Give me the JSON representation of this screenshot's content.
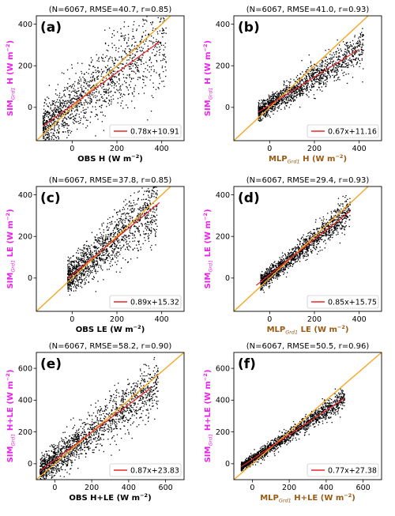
{
  "colors": {
    "points": "#000000",
    "one_to_one": "#f5a623",
    "fit": "#e8262a",
    "sim_label": "#ee22ee",
    "mlp_label": "#9a5a12",
    "obs_label": "#000000"
  },
  "chart_data": [
    {
      "type": "scatter",
      "panel_label": "(a)",
      "title": "(N=6067, RMSE=40.7, r=0.85)",
      "xlabel": {
        "main": "OBS",
        "sub": "",
        "rest": " H (W m",
        "sup": "−2",
        "close": ")",
        "kind": "obs"
      },
      "ylabel": {
        "main": "SIM",
        "sub": "Grd1",
        "rest": " H (W m",
        "sup": "−2",
        "close": ")"
      },
      "xlim": [
        -160,
        500
      ],
      "ylim": [
        -160,
        440
      ],
      "xticks": [
        0,
        200,
        400
      ],
      "yticks": [
        0,
        200,
        400
      ],
      "fit": {
        "slope": 0.78,
        "intercept": 10.91,
        "label": "0.78x+10.91",
        "x_range": [
          -130,
          390
        ]
      },
      "scatter": {
        "x_range": [
          -130,
          420
        ],
        "r": 0.85,
        "n_drawn": 1400
      }
    },
    {
      "type": "scatter",
      "panel_label": "(b)",
      "title": "(N=6067, RMSE=41.0, r=0.93)",
      "xlabel": {
        "main": "MLP",
        "sub": "Grd1",
        "rest": " H (W m",
        "sup": "−2",
        "close": ")",
        "kind": "mlp"
      },
      "ylabel": {
        "main": "SIM",
        "sub": "Grd1",
        "rest": " H (W m",
        "sup": "−2",
        "close": ")"
      },
      "xlim": [
        -160,
        500
      ],
      "ylim": [
        -160,
        440
      ],
      "xticks": [
        0,
        200,
        400
      ],
      "yticks": [
        0,
        200,
        400
      ],
      "fit": {
        "slope": 0.67,
        "intercept": 11.16,
        "label": "0.67x+11.16",
        "x_range": [
          -50,
          400
        ]
      },
      "scatter": {
        "x_range": [
          -50,
          420
        ],
        "r": 0.93,
        "n_drawn": 1400
      }
    },
    {
      "type": "scatter",
      "panel_label": "(c)",
      "title": "(N=6067, RMSE=37.8, r=0.85)",
      "xlabel": {
        "main": "OBS",
        "sub": "",
        "rest": " LE (W m",
        "sup": "−2",
        "close": ")",
        "kind": "obs"
      },
      "ylabel": {
        "main": "SIM",
        "sub": "Grd1",
        "rest": " LE (W m",
        "sup": "−2",
        "close": ")"
      },
      "xlim": [
        -160,
        500
      ],
      "ylim": [
        -160,
        440
      ],
      "xticks": [
        0,
        200,
        400
      ],
      "yticks": [
        0,
        200,
        400
      ],
      "fit": {
        "slope": 0.89,
        "intercept": 15.32,
        "label": "0.89x+15.32",
        "x_range": [
          -20,
          390
        ]
      },
      "scatter": {
        "x_range": [
          -20,
          380
        ],
        "r": 0.85,
        "n_drawn": 1400
      }
    },
    {
      "type": "scatter",
      "panel_label": "(d)",
      "title": "(N=6067, RMSE=29.4, r=0.93)",
      "xlabel": {
        "main": "MLP",
        "sub": "Grd1",
        "rest": " LE (W m",
        "sup": "−2",
        "close": ")",
        "kind": "mlp"
      },
      "ylabel": {
        "main": "SIM",
        "sub": "Grd1",
        "rest": " LE (W m",
        "sup": "−2",
        "close": ")"
      },
      "xlim": [
        -160,
        500
      ],
      "ylim": [
        -160,
        440
      ],
      "xticks": [
        0,
        200,
        400
      ],
      "yticks": [
        0,
        200,
        400
      ],
      "fit": {
        "slope": 0.85,
        "intercept": 15.75,
        "label": "0.85x+15.75",
        "x_range": [
          -60,
          360
        ]
      },
      "scatter": {
        "x_range": [
          -40,
          360
        ],
        "r": 0.93,
        "n_drawn": 1400
      }
    },
    {
      "type": "scatter",
      "panel_label": "(e)",
      "title": "(N=6067, RMSE=58.2, r=0.90)",
      "xlabel": {
        "main": "OBS",
        "sub": "",
        "rest": " H+LE (W m",
        "sup": "−2",
        "close": ")",
        "kind": "obs"
      },
      "ylabel": {
        "main": "SIM",
        "sub": "Grd1",
        "rest": " H+LE (W m",
        "sup": "−2",
        "close": ")"
      },
      "xlim": [
        -100,
        700
      ],
      "ylim": [
        -100,
        700
      ],
      "xticks": [
        0,
        200,
        400,
        600
      ],
      "yticks": [
        0,
        200,
        400,
        600
      ],
      "fit": {
        "slope": 0.87,
        "intercept": 23.83,
        "label": "0.87x+23.83",
        "x_range": [
          -80,
          520
        ]
      },
      "scatter": {
        "x_range": [
          -80,
          560
        ],
        "r": 0.9,
        "n_drawn": 1600
      }
    },
    {
      "type": "scatter",
      "panel_label": "(f)",
      "title": "(N=6067, RMSE=50.5, r=0.96)",
      "xlabel": {
        "main": "MLP",
        "sub": "Grd1",
        "rest": " H+LE (W m",
        "sup": "−2",
        "close": ")",
        "kind": "mlp"
      },
      "ylabel": {
        "main": "SIM",
        "sub": "Grd1",
        "rest": " H+LE (W m",
        "sup": "−2",
        "close": ")"
      },
      "xlim": [
        -100,
        700
      ],
      "ylim": [
        -100,
        700
      ],
      "xticks": [
        0,
        200,
        400,
        600
      ],
      "yticks": [
        0,
        200,
        400,
        600
      ],
      "fit": {
        "slope": 0.77,
        "intercept": 27.38,
        "label": "0.77x+27.38",
        "x_range": [
          -60,
          500
        ]
      },
      "scatter": {
        "x_range": [
          -60,
          500
        ],
        "r": 0.96,
        "n_drawn": 1600
      }
    }
  ]
}
